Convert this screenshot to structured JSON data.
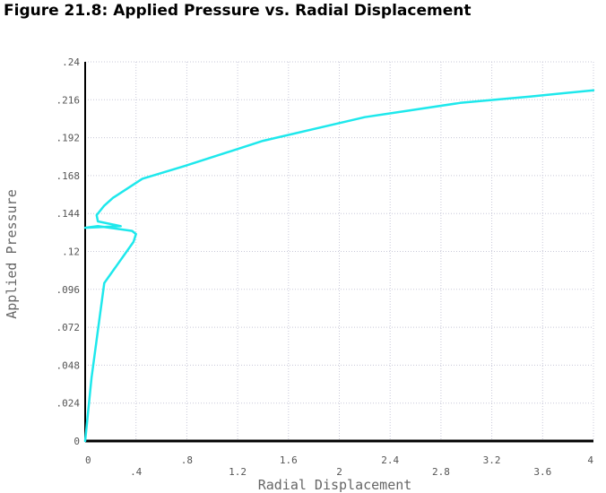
{
  "figure_title": "Figure 21.8: Applied Pressure vs. Radial Displacement",
  "chart_data": {
    "type": "line",
    "xlabel": "Radial Displacement",
    "ylabel": "Applied Pressure",
    "xlim": [
      0,
      4
    ],
    "ylim": [
      0,
      0.24
    ],
    "grid": true,
    "x_ticks": [
      "0",
      ".4",
      ".8",
      "1.2",
      "1.6",
      "2",
      "2.4",
      "2.8",
      "3.2",
      "3.6",
      "4"
    ],
    "y_ticks": [
      "0",
      ".024",
      ".048",
      ".072",
      ".096",
      ".12",
      ".144",
      ".168",
      ".192",
      ".216",
      ".24"
    ],
    "line_color": "#1ee8ec",
    "series": [
      {
        "x": [
          0,
          0.05,
          0.15,
          0.38,
          0.4,
          0.37,
          0.1,
          0,
          0.28,
          0.1,
          0.09,
          0.15,
          0.22,
          0.45,
          0.78,
          1.4,
          2.2,
          2.95,
          3.5,
          4.0
        ],
        "y": [
          0,
          0.04,
          0.1,
          0.126,
          0.131,
          0.133,
          0.136,
          0.135,
          0.136,
          0.139,
          0.143,
          0.149,
          0.154,
          0.166,
          0.174,
          0.19,
          0.205,
          0.214,
          0.218,
          0.222
        ]
      }
    ]
  }
}
